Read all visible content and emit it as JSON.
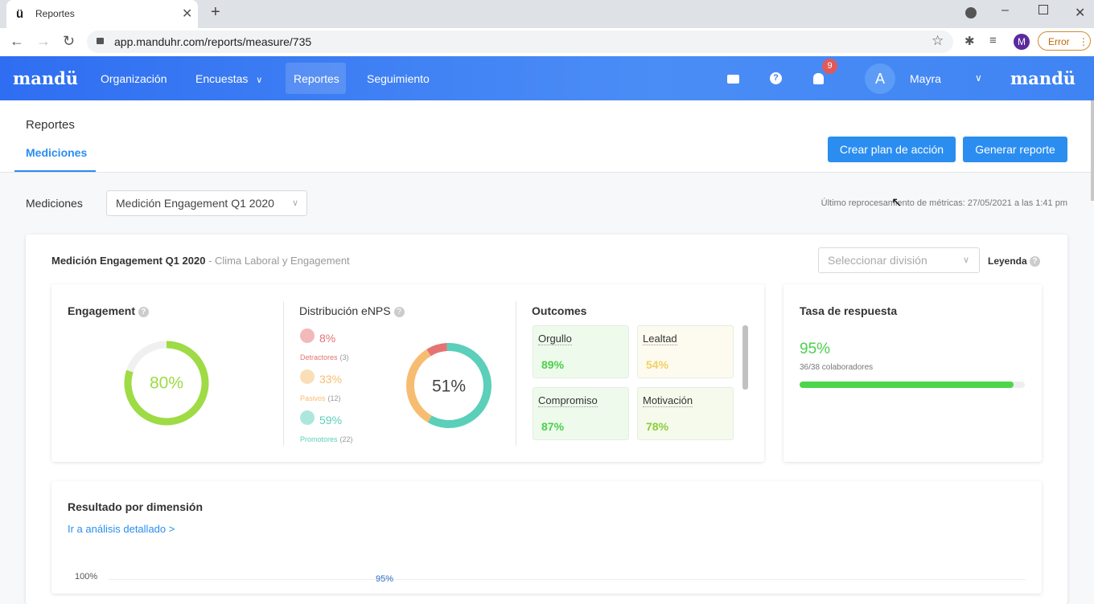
{
  "browser": {
    "tab_title": "Reportes",
    "url": "app.manduhr.com/reports/measure/735",
    "profile": "M",
    "error_button": "Error"
  },
  "nav": {
    "logo": "mandü",
    "items": [
      "Organización",
      "Encuestas",
      "Reportes",
      "Seguimiento"
    ],
    "notification_count": "9",
    "avatar": "A",
    "user": "Mayra",
    "brand": "mandü"
  },
  "header": {
    "title": "Reportes",
    "tab": "Mediciones",
    "buttons": [
      "Crear plan de acción",
      "Generar reporte"
    ]
  },
  "filter": {
    "label": "Mediciones",
    "select": "Medición Engagement Q1 2020",
    "last_update": "Último reprocesamiento de métricas: 27/05/2021 a las 1:41 pm"
  },
  "card": {
    "title": "Medición Engagement Q1 2020",
    "subtitle": "- Clima Laboral y Engagement",
    "division_placeholder": "Seleccionar división",
    "legend": "Leyenda"
  },
  "engagement": {
    "title": "Engagement",
    "score": {
      "value": 80,
      "label": "80%"
    },
    "color": "#9edb45"
  },
  "enps": {
    "title": "Distribución eNPS",
    "segments": [
      {
        "name": "Detractores",
        "count": "(3)",
        "share": {
          "value": 8,
          "label": "8%"
        },
        "color": "#e57373"
      },
      {
        "name": "Pasivos",
        "count": "(12)",
        "share": {
          "value": 33,
          "label": "33%"
        },
        "color": "#f6bd72"
      },
      {
        "name": "Promotores",
        "count": "(22)",
        "share": {
          "value": 59,
          "label": "59%"
        },
        "color": "#5bcfb9"
      }
    ],
    "score": {
      "value": 51,
      "label": "51%"
    }
  },
  "outcomes": {
    "title": "Outcomes",
    "items": [
      {
        "name": "Orgullo",
        "score": {
          "value": 89,
          "label": "89%"
        },
        "color": "#4ccf4c",
        "background": "#eefaec"
      },
      {
        "name": "Lealtad",
        "score": {
          "value": 54,
          "label": "54%"
        },
        "color": "#f2d062",
        "background": "#fdfbef"
      },
      {
        "name": "Compromiso",
        "score": {
          "value": 87,
          "label": "87%"
        },
        "color": "#4ccf4c",
        "background": "#eefaec"
      },
      {
        "name": "Motivación",
        "score": {
          "value": 78,
          "label": "78%"
        },
        "color": "#8ccd3a",
        "background": "#f5faec"
      }
    ]
  },
  "response": {
    "title": "Tasa de respuesta",
    "rate": {
      "value": 95,
      "label": "95%"
    },
    "detail": "36/38 colaboradores"
  },
  "dimension": {
    "title": "Resultado por dimensión",
    "link": "Ir a análisis detallado >",
    "axis_label": "100%",
    "first_value": "95%"
  }
}
